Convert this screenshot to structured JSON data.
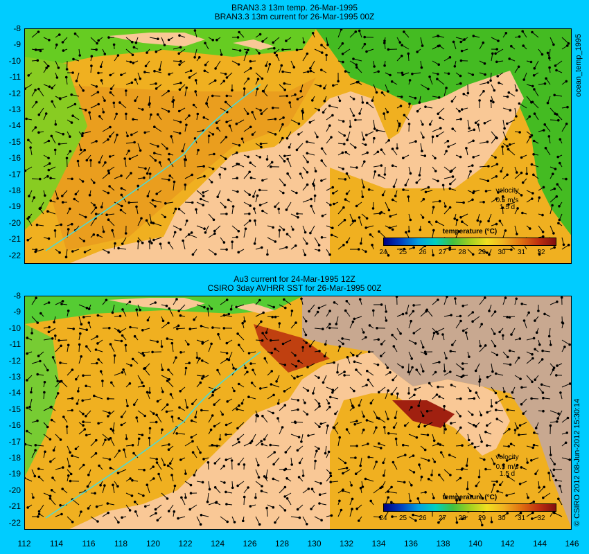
{
  "top_panel": {
    "title_line1": "BRAN3.3 13m temp. 26-Mar-1995",
    "title_line2": "BRAN3.3 13m current for 26-Mar-1995 00Z",
    "side_label": "ocean_temp_1995",
    "velocity": {
      "label": "velocity",
      "speed": "0.5 m/s",
      "duration": "1.5 d"
    },
    "colorbar": {
      "title": "temperature (°C)",
      "ticks": [
        "24",
        "25",
        "26",
        "27",
        "28",
        "29",
        "30",
        "31",
        "32"
      ]
    }
  },
  "bottom_panel": {
    "title_line1": "Au3 current for 24-Mar-1995 12Z",
    "title_line2": "CSIRO 3day AVHRR SST for 26-Mar-1995 00Z",
    "side_label": "© CSIRO 2012  08-Jun-2012 15:30:14",
    "velocity": {
      "label": "velocity",
      "speed": "0.5 m/s",
      "duration": "1.5 d"
    },
    "colorbar": {
      "title": "temperature (°C)",
      "ticks": [
        "24",
        "25",
        "26",
        "27",
        "28",
        "29",
        "30",
        "31",
        "32"
      ]
    }
  },
  "y_ticks": [
    "-8",
    "-9",
    "-10",
    "-11",
    "-12",
    "-13",
    "-14",
    "-15",
    "-16",
    "-17",
    "-18",
    "-19",
    "-20",
    "-21",
    "-22"
  ],
  "x_ticks": [
    "112",
    "114",
    "116",
    "118",
    "120",
    "122",
    "124",
    "126",
    "128",
    "130",
    "132",
    "134",
    "136",
    "138",
    "140",
    "142",
    "144",
    "146"
  ],
  "colors": {
    "background": "#00ccff",
    "land": "#f9c896",
    "missing": "#c8a890"
  }
}
